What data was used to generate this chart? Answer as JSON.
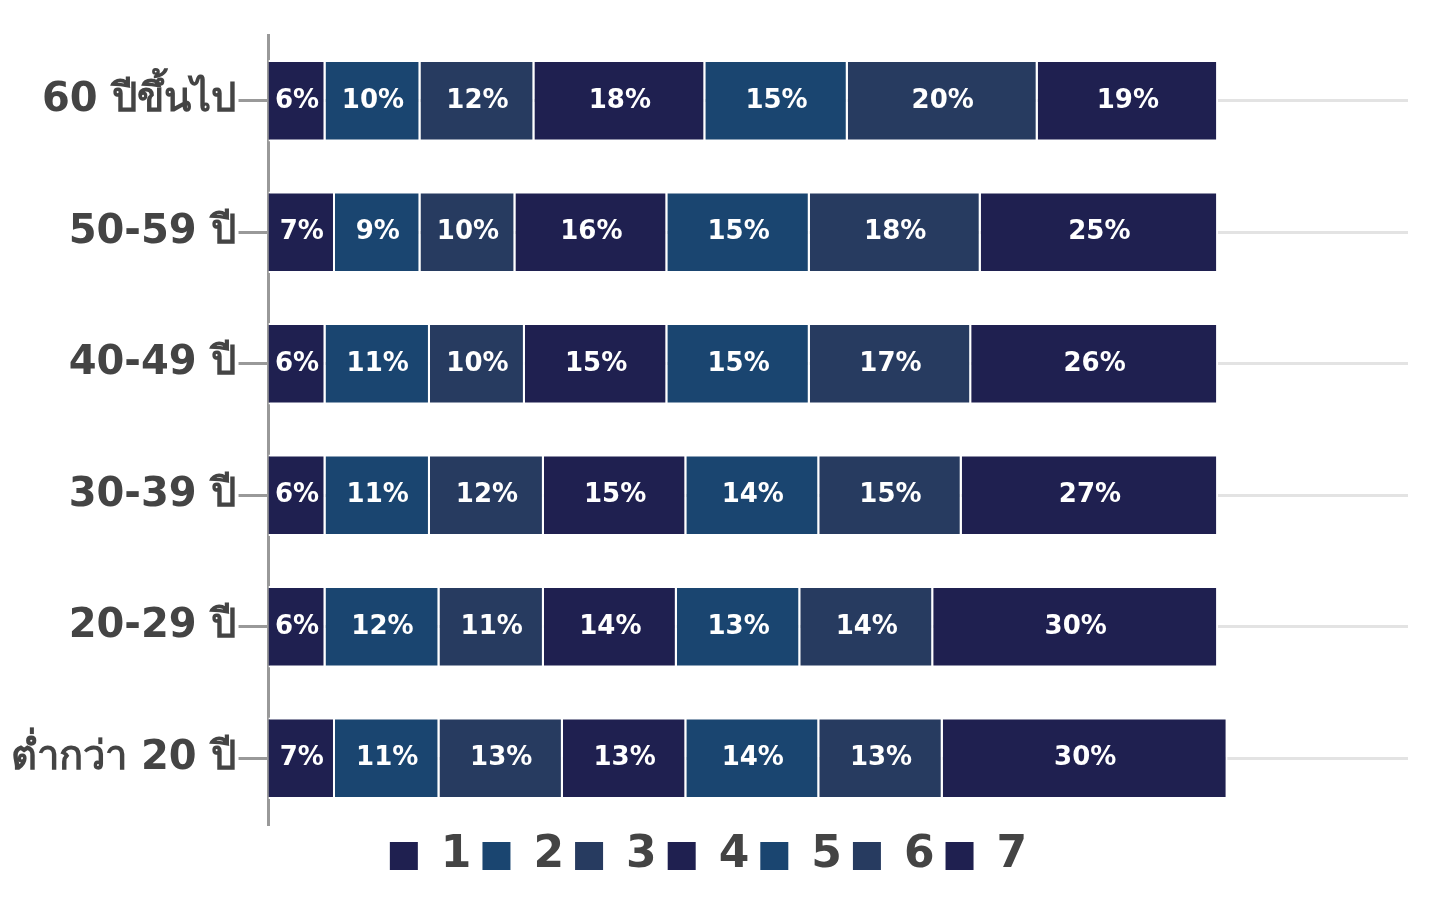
{
  "chart_data": {
    "type": "bar",
    "orientation": "horizontal",
    "stacked": true,
    "grid": "y",
    "legend": "bottom",
    "categories": [
      "60 ปีขึ้นไป",
      "50-59 ปี",
      "40-49 ปี",
      "30-39 ปี",
      "20-29 ปี",
      "ต่ำกว่า 20 ปี"
    ],
    "series": [
      {
        "name": "1",
        "color": "#1f2050",
        "values": [
          6,
          7,
          6,
          6,
          6,
          7
        ],
        "value_labels": [
          "6%",
          "7%",
          "6%",
          "6%",
          "6%",
          "7%"
        ]
      },
      {
        "name": "2",
        "color": "#1a4570",
        "values": [
          10,
          9,
          11,
          11,
          12,
          11
        ],
        "value_labels": [
          "10%",
          "9%",
          "11%",
          "11%",
          "12%",
          "11%"
        ]
      },
      {
        "name": "3",
        "color": "#273b60",
        "values": [
          12,
          10,
          10,
          12,
          11,
          13
        ],
        "value_labels": [
          "12%",
          "10%",
          "10%",
          "12%",
          "11%",
          "13%"
        ]
      },
      {
        "name": "4",
        "color": "#1f2050",
        "values": [
          18,
          16,
          15,
          15,
          14,
          13
        ],
        "value_labels": [
          "18%",
          "16%",
          "15%",
          "15%",
          "14%",
          "13%"
        ]
      },
      {
        "name": "5",
        "color": "#1a4570",
        "values": [
          15,
          15,
          15,
          14,
          13,
          14
        ],
        "value_labels": [
          "15%",
          "15%",
          "15%",
          "14%",
          "13%",
          "14%"
        ]
      },
      {
        "name": "6",
        "color": "#273b60",
        "values": [
          20,
          18,
          17,
          15,
          14,
          13
        ],
        "value_labels": [
          "20%",
          "18%",
          "17%",
          "15%",
          "14%",
          "13%"
        ]
      },
      {
        "name": "7",
        "color": "#1f2050",
        "values": [
          19,
          25,
          26,
          27,
          30,
          30
        ],
        "value_labels": [
          "19%",
          "25%",
          "26%",
          "27%",
          "30%",
          "30%"
        ]
      }
    ]
  }
}
